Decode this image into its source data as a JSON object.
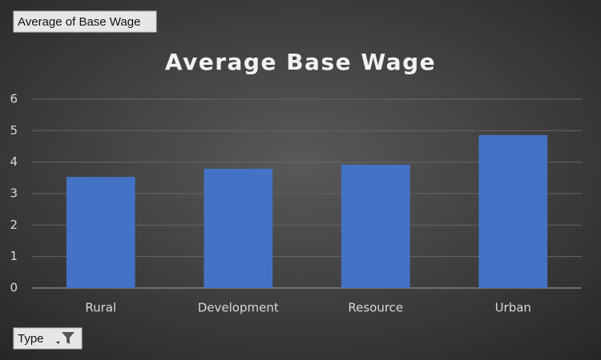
{
  "chart_data": {
    "type": "bar",
    "title": "Average Base Wage",
    "categories": [
      "Rural",
      "Development",
      "Resource",
      "Urban"
    ],
    "values": [
      3.53,
      3.79,
      3.92,
      4.86
    ],
    "color": "#4472c4",
    "ylim": [
      0,
      6
    ],
    "yticks": [
      0,
      1,
      2,
      3,
      4,
      5,
      6
    ],
    "grid": true
  },
  "field_buttons": {
    "value_field": "Average of Base Wage",
    "axis_field": "Type"
  }
}
